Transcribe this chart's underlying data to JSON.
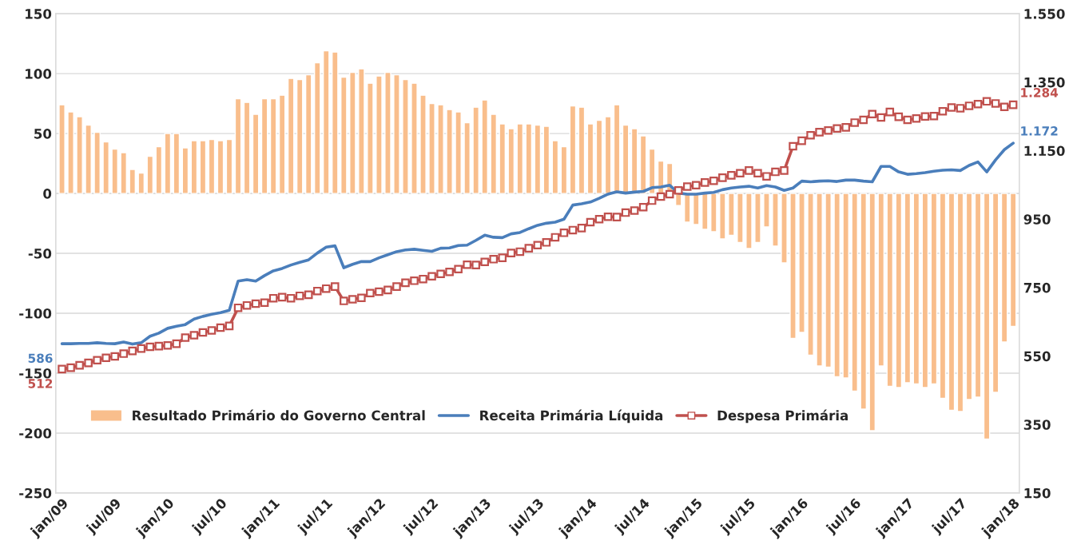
{
  "chart_data": {
    "type": "bar",
    "categories": [
      "jan/09",
      null,
      null,
      null,
      null,
      null,
      "jul/09",
      null,
      null,
      null,
      null,
      null,
      "jan/10",
      null,
      null,
      null,
      null,
      null,
      "jul/10",
      null,
      null,
      null,
      null,
      null,
      "jan/11",
      null,
      null,
      null,
      null,
      null,
      "jul/11",
      null,
      null,
      null,
      null,
      null,
      "jan/12",
      null,
      null,
      null,
      null,
      null,
      "jul/12",
      null,
      null,
      null,
      null,
      null,
      "jan/13",
      null,
      null,
      null,
      null,
      null,
      "jul/13",
      null,
      null,
      null,
      null,
      null,
      "jan/14",
      null,
      null,
      null,
      null,
      null,
      "jul/14",
      null,
      null,
      null,
      null,
      null,
      "jan/15",
      null,
      null,
      null,
      null,
      null,
      "jul/15",
      null,
      null,
      null,
      null,
      null,
      "jan/16",
      null,
      null,
      null,
      null,
      null,
      "jul/16",
      null,
      null,
      null,
      null,
      null,
      "jan/17",
      null,
      null,
      null,
      null,
      null,
      "jul/17",
      null,
      null,
      null,
      null,
      null,
      "jan/18"
    ],
    "series": [
      {
        "name": "Resultado Primário do Governo Central",
        "color": "#f9be8c",
        "values": [
          74,
          68,
          64,
          57,
          51,
          43,
          37,
          34,
          20,
          17,
          31,
          39,
          50,
          50,
          38,
          44,
          44,
          45,
          44,
          45,
          79,
          76,
          66,
          79,
          79,
          82,
          96,
          95,
          99,
          109,
          119,
          118,
          97,
          101,
          104,
          92,
          98,
          101,
          99,
          95,
          92,
          82,
          75,
          74,
          70,
          68,
          59,
          72,
          78,
          66,
          58,
          54,
          58,
          58,
          57,
          56,
          44,
          39,
          73,
          72,
          58,
          61,
          64,
          74,
          57,
          54,
          48,
          37,
          27,
          25,
          -10,
          -24,
          -26,
          -30,
          -32,
          -38,
          -35,
          -41,
          -46,
          -41,
          -28,
          -44,
          -58,
          -121,
          -116,
          -135,
          -144,
          -145,
          -153,
          -154,
          -165,
          -180,
          -198,
          -144,
          -161,
          -162,
          -158,
          -159,
          -162,
          -159,
          -171,
          -181,
          -182,
          -172,
          -170,
          -205,
          -166,
          -124,
          -111
        ]
      },
      {
        "name": "Receita Primária Líquida",
        "type": "line",
        "axis": "y2",
        "color": "#4a7ebb",
        "marker": "none",
        "values": [
          586,
          586,
          587,
          587,
          589,
          587,
          586,
          591,
          585,
          589,
          608,
          617,
          631,
          637,
          642,
          658,
          666,
          672,
          677,
          684,
          769,
          773,
          769,
          785,
          799,
          806,
          816,
          824,
          831,
          851,
          868,
          872,
          808,
          818,
          826,
          826,
          837,
          846,
          855,
          860,
          862,
          859,
          856,
          865,
          866,
          873,
          874,
          888,
          903,
          897,
          896,
          907,
          911,
          922,
          932,
          938,
          941,
          950,
          991,
          995,
          1000,
          1011,
          1023,
          1030,
          1026,
          1029,
          1031,
          1042,
          1044,
          1049,
          1026,
          1023,
          1023,
          1026,
          1028,
          1036,
          1041,
          1044,
          1046,
          1041,
          1048,
          1044,
          1034,
          1041,
          1061,
          1059,
          1061,
          1062,
          1060,
          1064,
          1064,
          1061,
          1059,
          1104,
          1104,
          1088,
          1081,
          1083,
          1086,
          1090,
          1093,
          1094,
          1092,
          1107,
          1117,
          1088,
          1123,
          1153,
          1172
        ],
        "value_labels": [
          "586",
          null,
          null,
          null,
          null,
          null,
          null,
          null,
          null,
          null,
          null,
          null,
          null,
          null,
          null,
          null,
          null,
          null,
          null,
          null,
          null,
          null,
          null,
          null,
          null,
          null,
          null,
          null,
          null,
          null,
          null,
          null,
          null,
          null,
          null,
          null,
          null,
          null,
          null,
          null,
          null,
          null,
          null,
          null,
          null,
          null,
          null,
          null,
          null,
          null,
          null,
          null,
          null,
          null,
          null,
          null,
          null,
          null,
          null,
          null,
          null,
          null,
          null,
          null,
          null,
          null,
          null,
          null,
          null,
          null,
          null,
          null,
          null,
          null,
          null,
          null,
          null,
          null,
          null,
          null,
          null,
          null,
          null,
          null,
          null,
          null,
          null,
          null,
          null,
          null,
          null,
          null,
          null,
          null,
          null,
          null,
          null,
          null,
          null,
          null,
          null,
          null,
          null,
          null,
          null,
          null,
          null,
          null,
          "1.172"
        ]
      },
      {
        "name": "Despesa Primária",
        "type": "line",
        "axis": "y2",
        "color": "#c0504d",
        "marker": "square",
        "values": [
          512,
          516,
          523,
          530,
          538,
          545,
          549,
          557,
          565,
          572,
          577,
          579,
          581,
          586,
          604,
          611,
          619,
          625,
          633,
          638,
          691,
          698,
          703,
          706,
          719,
          722,
          719,
          726,
          729,
          740,
          747,
          753,
          711,
          716,
          720,
          734,
          738,
          743,
          753,
          764,
          770,
          775,
          783,
          790,
          796,
          804,
          817,
          816,
          825,
          833,
          837,
          851,
          855,
          865,
          874,
          882,
          897,
          910,
          918,
          924,
          941,
          950,
          957,
          956,
          969,
          975,
          985,
          1004,
          1016,
          1023,
          1034,
          1045,
          1049,
          1057,
          1062,
          1071,
          1078,
          1084,
          1092,
          1084,
          1075,
          1088,
          1092,
          1163,
          1179,
          1195,
          1204,
          1209,
          1215,
          1218,
          1232,
          1240,
          1257,
          1247,
          1263,
          1249,
          1240,
          1244,
          1250,
          1251,
          1265,
          1276,
          1274,
          1281,
          1286,
          1294,
          1288,
          1278,
          1284
        ],
        "value_labels": [
          "512",
          null,
          null,
          null,
          null,
          null,
          null,
          null,
          null,
          null,
          null,
          null,
          null,
          null,
          null,
          null,
          null,
          null,
          null,
          null,
          null,
          null,
          null,
          null,
          null,
          null,
          null,
          null,
          null,
          null,
          null,
          null,
          null,
          null,
          null,
          null,
          null,
          null,
          null,
          null,
          null,
          null,
          null,
          null,
          null,
          null,
          null,
          null,
          null,
          null,
          null,
          null,
          null,
          null,
          null,
          null,
          null,
          null,
          null,
          null,
          null,
          null,
          null,
          null,
          null,
          null,
          null,
          null,
          null,
          null,
          null,
          null,
          null,
          null,
          null,
          null,
          null,
          null,
          null,
          null,
          null,
          null,
          null,
          null,
          null,
          null,
          null,
          null,
          null,
          null,
          null,
          null,
          null,
          null,
          null,
          null,
          null,
          null,
          null,
          null,
          null,
          null,
          null,
          null,
          null,
          null,
          null,
          null,
          "1.284"
        ]
      }
    ],
    "ylim": [
      -250,
      150
    ],
    "yticks": [
      -250,
      -200,
      -150,
      -100,
      -50,
      0,
      50,
      100,
      150
    ],
    "y2lim": [
      150,
      1550
    ],
    "y2ticks": [
      150,
      350,
      550,
      750,
      950,
      {
        "value": 1150,
        "label": "1.150"
      },
      {
        "value": 1350,
        "label": "1.350"
      },
      {
        "value": 1550,
        "label": "1.550"
      }
    ],
    "grid": "y",
    "legend": "bottom"
  }
}
